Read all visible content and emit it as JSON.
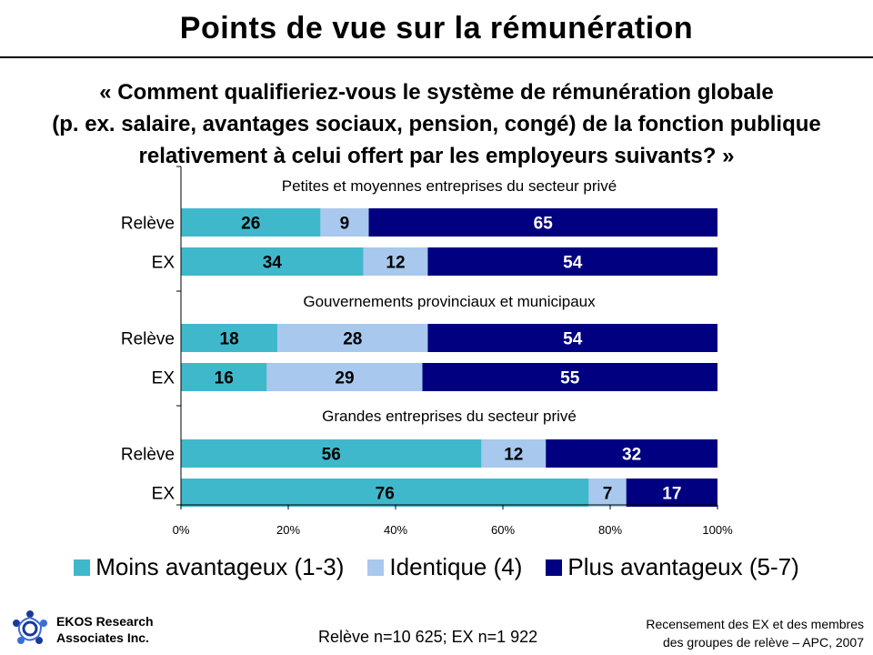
{
  "title": "Points de vue sur la rémunération",
  "subtitle": {
    "line1": "« Comment qualifieriez-vous le système de rémunération globale",
    "line2": "(p. ex. salaire, avantages sociaux, pension, congé) de la fonction publique",
    "line3": "relativement à celui offert par les employeurs suivants? »"
  },
  "colors": {
    "moins": "#40B8CC",
    "identique": "#A8C8EE",
    "plus": "#000080"
  },
  "chart_data": {
    "type": "bar",
    "orientation": "horizontal-stacked-100",
    "xlim": [
      0,
      100
    ],
    "xticks": [
      "0%",
      "20%",
      "40%",
      "60%",
      "80%",
      "100%"
    ],
    "legend": [
      {
        "key": "moins",
        "label": "Moins avantageux (1-3)"
      },
      {
        "key": "identique",
        "label": "Identique (4)"
      },
      {
        "key": "plus",
        "label": "Plus avantageux (5-7)"
      }
    ],
    "groups": [
      {
        "label": "Petites et moyennes entreprises du secteur privé",
        "rows": [
          {
            "category": "Relève",
            "values": [
              26,
              9,
              65
            ]
          },
          {
            "category": "EX",
            "values": [
              34,
              12,
              54
            ]
          }
        ]
      },
      {
        "label": "Gouvernements provinciaux et municipaux",
        "rows": [
          {
            "category": "Relève",
            "values": [
              18,
              28,
              54
            ]
          },
          {
            "category": "EX",
            "values": [
              16,
              29,
              55
            ]
          }
        ]
      },
      {
        "label": "Grandes entreprises du secteur privé",
        "rows": [
          {
            "category": "Relève",
            "values": [
              56,
              12,
              32
            ]
          },
          {
            "category": "EX",
            "values": [
              76,
              7,
              17
            ]
          }
        ]
      }
    ]
  },
  "footer": {
    "org_line1": "EKOS Research",
    "org_line2": "Associates Inc.",
    "sample": "Relève n=10 625; EX n=1 922",
    "source_line1": "Recensement des EX et des membres",
    "source_line2": "des groupes de relève – APC, 2007"
  }
}
